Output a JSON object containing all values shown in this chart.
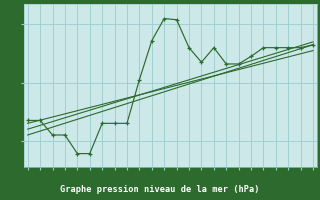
{
  "x": [
    0,
    1,
    2,
    3,
    4,
    5,
    6,
    7,
    8,
    9,
    10,
    11,
    12,
    13,
    14,
    15,
    16,
    17,
    18,
    19,
    20,
    21,
    22,
    23
  ],
  "y_main": [
    1033.35,
    1033.35,
    1033.1,
    1033.1,
    1032.78,
    1032.78,
    1033.3,
    1033.3,
    1033.3,
    1034.05,
    1034.72,
    1035.1,
    1035.08,
    1034.6,
    1034.35,
    1034.6,
    1034.32,
    1034.32,
    1034.45,
    1034.6,
    1034.6,
    1034.6,
    1034.6,
    1034.65
  ],
  "trend1_x": [
    0,
    23
  ],
  "trend1_y": [
    1033.1,
    1034.65
  ],
  "trend2_x": [
    0,
    23
  ],
  "trend2_y": [
    1033.2,
    1034.7
  ],
  "trend3_x": [
    0,
    23
  ],
  "trend3_y": [
    1033.3,
    1034.55
  ],
  "xlim": [
    -0.3,
    23.3
  ],
  "ylim": [
    1032.55,
    1035.35
  ],
  "yticks": [
    1033,
    1034,
    1035
  ],
  "xticks": [
    0,
    1,
    2,
    3,
    4,
    5,
    6,
    7,
    8,
    9,
    10,
    11,
    12,
    13,
    14,
    15,
    16,
    17,
    18,
    19,
    20,
    21,
    22,
    23
  ],
  "xlabel": "Graphe pression niveau de la mer (hPa)",
  "line_color": "#2d6a2d",
  "bg_color": "#cce8e8",
  "grid_color": "#99cccc",
  "bar_color": "#2d6a2d",
  "bar_text_color": "#ffffff"
}
